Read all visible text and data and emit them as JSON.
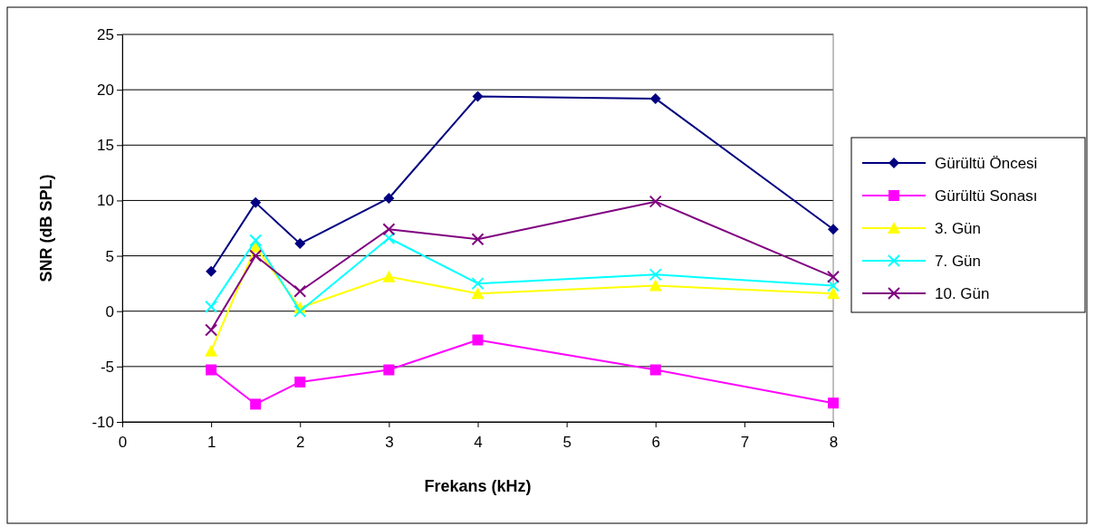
{
  "chart_data": {
    "type": "line",
    "xlabel": "Frekans (kHz)",
    "ylabel": "SNR (dB SPL)",
    "x": [
      1,
      1.5,
      2,
      3,
      4,
      6,
      8
    ],
    "xlim": [
      0,
      8
    ],
    "xticks": [
      0,
      1,
      2,
      3,
      4,
      5,
      6,
      7,
      8
    ],
    "ylim": [
      -10,
      25
    ],
    "yticks": [
      -10,
      -5,
      0,
      5,
      10,
      15,
      20,
      25
    ],
    "grid": "y",
    "legend": "right",
    "series": [
      {
        "name": "Gürültü Öncesi",
        "color": "#000080",
        "marker": "diamond",
        "values": [
          3.6,
          9.8,
          6.1,
          10.2,
          19.4,
          19.2,
          7.4
        ]
      },
      {
        "name": "Gürültü Sonası",
        "color": "#ff00ff",
        "marker": "square",
        "values": [
          -5.3,
          -8.4,
          -6.4,
          -5.3,
          -2.6,
          -5.3,
          -8.3
        ]
      },
      {
        "name": "3. Gün",
        "color": "#ffff00",
        "marker": "triangle",
        "values": [
          -3.6,
          5.8,
          0.3,
          3.1,
          1.6,
          2.3,
          1.6
        ]
      },
      {
        "name": "7. Gün",
        "color": "#00ffff",
        "marker": "cross",
        "values": [
          0.4,
          6.4,
          0.0,
          6.6,
          2.5,
          3.3,
          2.3
        ]
      },
      {
        "name": "10. Gün",
        "color": "#800080",
        "marker": "cross",
        "values": [
          -1.7,
          5.0,
          1.8,
          7.4,
          6.5,
          9.9,
          3.1
        ]
      }
    ]
  }
}
